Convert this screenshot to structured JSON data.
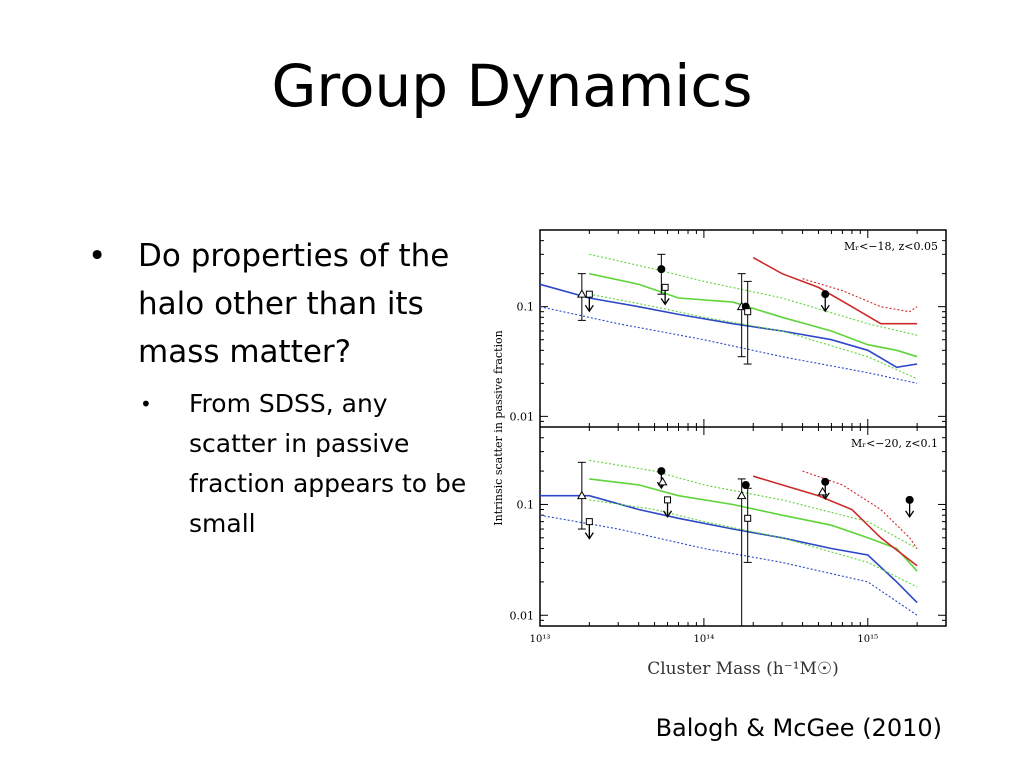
{
  "slide": {
    "title": "Group Dynamics",
    "bullet": "Do properties of the halo other than its mass matter?",
    "subbullet": "From SDSS, any scatter in passive fraction appears to be small",
    "citation": "Balogh & McGee (2010)"
  },
  "chart_data": {
    "type": "line",
    "xlabel": "Cluster Mass (h⁻¹M☉)",
    "ylabel": "Intrinsic scatter in passive fraction",
    "x_scale": "log",
    "y_scale": "log",
    "xlim": [
      10000000000000.0,
      3000000000000000.0
    ],
    "ylim": [
      0.008,
      0.5
    ],
    "x_ticks": [
      "10¹³",
      "10¹⁴",
      "10¹⁵"
    ],
    "y_ticks": [
      "0.1",
      "0.01"
    ],
    "panels": [
      {
        "label": "Mᵣ<−18, z<0.05",
        "series": [
          {
            "color": "#2b48c8",
            "style": "solid",
            "x": [
              10000000000000.0,
              20000000000000.0,
              40000000000000.0,
              70000000000000.0,
              150000000000000.0,
              300000000000000.0,
              600000000000000.0,
              1000000000000000.0,
              1500000000000000.0,
              2000000000000000.0
            ],
            "y": [
              0.16,
              0.12,
              0.1,
              0.085,
              0.07,
              0.06,
              0.05,
              0.04,
              0.028,
              0.03
            ]
          },
          {
            "color": "#2b48c8",
            "style": "dotted",
            "x": [
              10000000000000.0,
              30000000000000.0,
              100000000000000.0,
              300000000000000.0,
              1000000000000000.0,
              2000000000000000.0
            ],
            "y": [
              0.1,
              0.07,
              0.05,
              0.035,
              0.025,
              0.02
            ]
          },
          {
            "color": "#5fd43a",
            "style": "solid",
            "x": [
              20000000000000.0,
              40000000000000.0,
              70000000000000.0,
              150000000000000.0,
              300000000000000.0,
              600000000000000.0,
              1000000000000000.0,
              1500000000000000.0,
              2000000000000000.0
            ],
            "y": [
              0.2,
              0.16,
              0.12,
              0.11,
              0.08,
              0.06,
              0.045,
              0.04,
              0.035
            ]
          },
          {
            "color": "#5fd43a",
            "style": "dotted",
            "x": [
              20000000000000.0,
              50000000000000.0,
              100000000000000.0,
              300000000000000.0,
              1000000000000000.0,
              2000000000000000.0
            ],
            "y": [
              0.3,
              0.22,
              0.17,
              0.12,
              0.07,
              0.055
            ]
          },
          {
            "color": "#5fd43a",
            "style": "dotted",
            "x": [
              20000000000000.0,
              50000000000000.0,
              100000000000000.0,
              300000000000000.0,
              1000000000000000.0,
              2000000000000000.0
            ],
            "y": [
              0.13,
              0.1,
              0.08,
              0.06,
              0.035,
              0.022
            ]
          },
          {
            "color": "#cc2a2a",
            "style": "solid",
            "x": [
              200000000000000.0,
              300000000000000.0,
              500000000000000.0,
              800000000000000.0,
              1200000000000000.0,
              2000000000000000.0
            ],
            "y": [
              0.28,
              0.2,
              0.15,
              0.1,
              0.07,
              0.07
            ]
          },
          {
            "color": "#cc2a2a",
            "style": "dotted",
            "x": [
              400000000000000.0,
              700000000000000.0,
              1200000000000000.0,
              1800000000000000.0,
              2000000000000000.0
            ],
            "y": [
              0.18,
              0.14,
              0.1,
              0.09,
              0.1
            ]
          }
        ],
        "points": [
          {
            "x": 18000000000000.0,
            "y": 0.13,
            "marker": "triangle",
            "err": [
              0.075,
              0.2
            ]
          },
          {
            "x": 20000000000000.0,
            "y": 0.13,
            "marker": "square",
            "upper_limit": true
          },
          {
            "x": 55000000000000.0,
            "y": 0.22,
            "marker": "circle",
            "err": [
              0.13,
              0.3
            ]
          },
          {
            "x": 58000000000000.0,
            "y": 0.15,
            "marker": "square",
            "upper_limit": true
          },
          {
            "x": 170000000000000.0,
            "y": 0.1,
            "marker": "triangle",
            "err": [
              0.035,
              0.2
            ]
          },
          {
            "x": 180000000000000.0,
            "y": 0.1,
            "marker": "circle"
          },
          {
            "x": 185000000000000.0,
            "y": 0.09,
            "marker": "square",
            "err": [
              0.03,
              0.17
            ]
          },
          {
            "x": 550000000000000.0,
            "y": 0.13,
            "marker": "circle",
            "upper_limit": true
          }
        ]
      },
      {
        "label": "Mᵣ<−20, z<0.1",
        "series": [
          {
            "color": "#2b48c8",
            "style": "solid",
            "x": [
              10000000000000.0,
              20000000000000.0,
              40000000000000.0,
              70000000000000.0,
              150000000000000.0,
              300000000000000.0,
              600000000000000.0,
              1000000000000000.0,
              1500000000000000.0,
              2000000000000000.0
            ],
            "y": [
              0.12,
              0.12,
              0.09,
              0.075,
              0.06,
              0.05,
              0.04,
              0.035,
              0.02,
              0.013
            ]
          },
          {
            "color": "#2b48c8",
            "style": "dotted",
            "x": [
              10000000000000.0,
              30000000000000.0,
              100000000000000.0,
              300000000000000.0,
              1000000000000000.0,
              2000000000000000.0
            ],
            "y": [
              0.08,
              0.06,
              0.04,
              0.03,
              0.02,
              0.01
            ]
          },
          {
            "color": "#5fd43a",
            "style": "solid",
            "x": [
              20000000000000.0,
              40000000000000.0,
              70000000000000.0,
              150000000000000.0,
              300000000000000.0,
              600000000000000.0,
              1000000000000000.0,
              1500000000000000.0,
              2000000000000000.0
            ],
            "y": [
              0.17,
              0.15,
              0.12,
              0.1,
              0.08,
              0.065,
              0.05,
              0.04,
              0.025
            ]
          },
          {
            "color": "#5fd43a",
            "style": "dotted",
            "x": [
              20000000000000.0,
              50000000000000.0,
              100000000000000.0,
              300000000000000.0,
              1000000000000000.0,
              2000000000000000.0
            ],
            "y": [
              0.25,
              0.2,
              0.15,
              0.11,
              0.07,
              0.04
            ]
          },
          {
            "color": "#5fd43a",
            "style": "dotted",
            "x": [
              20000000000000.0,
              50000000000000.0,
              100000000000000.0,
              300000000000000.0,
              1000000000000000.0,
              2000000000000000.0
            ],
            "y": [
              0.11,
              0.09,
              0.07,
              0.05,
              0.03,
              0.018
            ]
          },
          {
            "color": "#cc2a2a",
            "style": "solid",
            "x": [
              200000000000000.0,
              300000000000000.0,
              500000000000000.0,
              800000000000000.0,
              1200000000000000.0,
              2000000000000000.0
            ],
            "y": [
              0.18,
              0.15,
              0.12,
              0.09,
              0.05,
              0.028
            ]
          },
          {
            "color": "#cc2a2a",
            "style": "dotted",
            "x": [
              400000000000000.0,
              700000000000000.0,
              1200000000000000.0,
              1800000000000000.0,
              2000000000000000.0
            ],
            "y": [
              0.2,
              0.15,
              0.09,
              0.05,
              0.04
            ]
          }
        ],
        "points": [
          {
            "x": 18000000000000.0,
            "y": 0.12,
            "marker": "triangle",
            "err": [
              0.06,
              0.24
            ]
          },
          {
            "x": 20000000000000.0,
            "y": 0.07,
            "marker": "square",
            "upper_limit": true
          },
          {
            "x": 55000000000000.0,
            "y": 0.2,
            "marker": "circle",
            "upper_limit": true
          },
          {
            "x": 56000000000000.0,
            "y": 0.16,
            "marker": "triangle"
          },
          {
            "x": 60000000000000.0,
            "y": 0.11,
            "marker": "square",
            "upper_limit": true
          },
          {
            "x": 170000000000000.0,
            "y": 0.12,
            "marker": "triangle",
            "err": [
              0.008,
              0.17
            ]
          },
          {
            "x": 180000000000000.0,
            "y": 0.15,
            "marker": "circle"
          },
          {
            "x": 185000000000000.0,
            "y": 0.075,
            "marker": "square",
            "err": [
              0.03,
              0.14
            ]
          },
          {
            "x": 550000000000000.0,
            "y": 0.16,
            "marker": "circle",
            "upper_limit": true
          },
          {
            "x": 530000000000000.0,
            "y": 0.13,
            "marker": "triangle"
          },
          {
            "x": 1800000000000000.0,
            "y": 0.11,
            "marker": "circle",
            "upper_limit": true
          }
        ]
      }
    ]
  }
}
